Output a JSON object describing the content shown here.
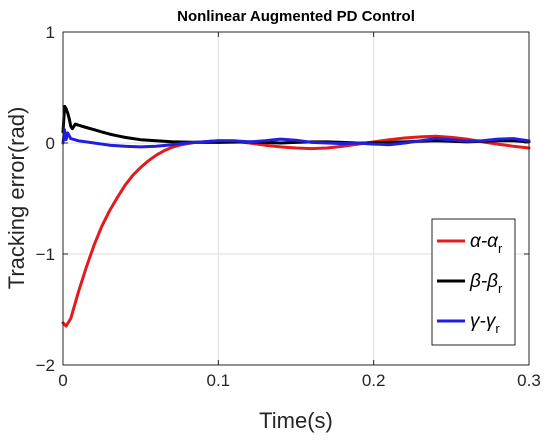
{
  "chart_data": {
    "type": "line",
    "title": "Nonlinear Augmented PD Control",
    "xlabel": "Time(s)",
    "ylabel": "Tracking error(rad)",
    "xlim": [
      0,
      0.3
    ],
    "ylim": [
      -2,
      1
    ],
    "xticks": [
      0,
      0.1,
      0.2,
      0.3
    ],
    "xtick_labels": [
      "0",
      "0.1",
      "0.2",
      "0.3"
    ],
    "yticks": [
      -2,
      -1,
      0,
      1
    ],
    "ytick_labels": [
      "−2",
      "−1",
      "0",
      "1"
    ],
    "grid": true,
    "legend_position": "lower-right",
    "series": [
      {
        "name": "α-αr",
        "legend_main": "α-α",
        "legend_sub": "r",
        "color": "#e41a1c",
        "x": [
          0,
          0.002,
          0.005,
          0.01,
          0.015,
          0.02,
          0.025,
          0.03,
          0.035,
          0.04,
          0.045,
          0.05,
          0.055,
          0.06,
          0.065,
          0.07,
          0.075,
          0.08,
          0.085,
          0.09,
          0.095,
          0.1,
          0.11,
          0.12,
          0.13,
          0.14,
          0.15,
          0.16,
          0.17,
          0.18,
          0.19,
          0.2,
          0.21,
          0.22,
          0.23,
          0.24,
          0.25,
          0.26,
          0.27,
          0.28,
          0.29,
          0.3
        ],
        "y": [
          -1.62,
          -1.65,
          -1.58,
          -1.34,
          -1.12,
          -0.92,
          -0.75,
          -0.61,
          -0.49,
          -0.38,
          -0.29,
          -0.22,
          -0.16,
          -0.11,
          -0.07,
          -0.04,
          -0.02,
          -0.005,
          0.005,
          0.01,
          0.015,
          0.02,
          0.015,
          0.0,
          -0.02,
          -0.035,
          -0.045,
          -0.05,
          -0.045,
          -0.03,
          -0.01,
          0.01,
          0.03,
          0.045,
          0.055,
          0.06,
          0.05,
          0.035,
          0.01,
          -0.01,
          -0.03,
          -0.045
        ]
      },
      {
        "name": "β-βr",
        "legend_main": "β-β",
        "legend_sub": "r",
        "color": "#000000",
        "x": [
          0,
          0.001,
          0.002,
          0.003,
          0.004,
          0.005,
          0.006,
          0.008,
          0.01,
          0.015,
          0.02,
          0.025,
          0.03,
          0.035,
          0.04,
          0.05,
          0.06,
          0.07,
          0.08,
          0.09,
          0.1,
          0.11,
          0.12,
          0.13,
          0.14,
          0.15,
          0.16,
          0.17,
          0.18,
          0.19,
          0.2,
          0.21,
          0.22,
          0.23,
          0.24,
          0.25,
          0.26,
          0.27,
          0.28,
          0.29,
          0.3
        ],
        "y": [
          0.1,
          0.33,
          0.31,
          0.27,
          0.22,
          0.15,
          0.13,
          0.17,
          0.16,
          0.14,
          0.12,
          0.1,
          0.08,
          0.065,
          0.05,
          0.03,
          0.02,
          0.012,
          0.008,
          0.005,
          0.005,
          0.008,
          0.01,
          0.005,
          0.0,
          0.005,
          0.01,
          0.01,
          0.005,
          0.0,
          0.0,
          0.005,
          0.01,
          0.015,
          0.02,
          0.015,
          0.01,
          0.015,
          0.02,
          0.02,
          0.01
        ]
      },
      {
        "name": "γ-γr",
        "legend_main": "γ-γ",
        "legend_sub": "r",
        "color": "#1f1fdd",
        "x": [
          0,
          0.001,
          0.002,
          0.003,
          0.005,
          0.01,
          0.02,
          0.03,
          0.04,
          0.05,
          0.06,
          0.07,
          0.08,
          0.09,
          0.1,
          0.11,
          0.12,
          0.13,
          0.14,
          0.15,
          0.16,
          0.17,
          0.18,
          0.19,
          0.2,
          0.21,
          0.22,
          0.23,
          0.24,
          0.25,
          0.26,
          0.27,
          0.28,
          0.29,
          0.3
        ],
        "y": [
          0.0,
          0.12,
          0.03,
          0.09,
          0.04,
          0.02,
          0.0,
          -0.02,
          -0.03,
          -0.035,
          -0.03,
          -0.015,
          0.0,
          0.01,
          0.02,
          0.02,
          0.01,
          0.02,
          0.035,
          0.025,
          0.005,
          0.0,
          -0.005,
          0.0,
          -0.01,
          -0.015,
          0.0,
          0.02,
          0.04,
          0.03,
          0.015,
          0.02,
          0.035,
          0.04,
          0.02
        ]
      }
    ]
  }
}
